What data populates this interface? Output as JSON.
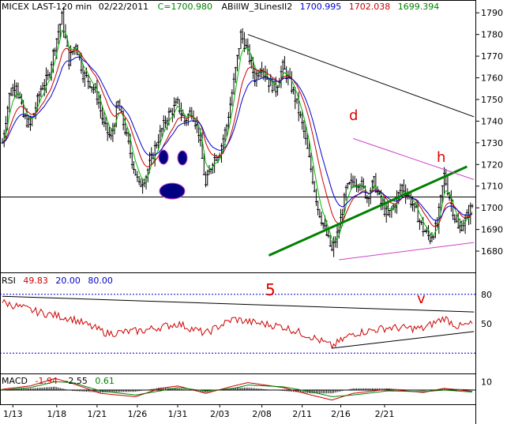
{
  "header": {
    "symbol": "MICEX LAST-120 min",
    "date": "02/22/2011",
    "close": "C=1700.980",
    "indicator": "ABillW_3LinesII2",
    "val_blue": "1700.995",
    "val_red": "1702.038",
    "val_green": "1699.394"
  },
  "colors": {
    "price": "#000000",
    "green_ma": "#00bb00",
    "red_ma": "#cc0000",
    "blue_ma": "#0000cc",
    "trend": "#008000",
    "channel": "#cc44cc",
    "rsi": "#cc0000",
    "macd_signal": "#008000",
    "annotation": "#dd0000",
    "face": "#000080"
  },
  "annotations": {
    "five": "5",
    "d": "d",
    "h": "h",
    "v": "v"
  },
  "rsi_panel": {
    "label": "RSI",
    "value": "49.83",
    "level_low": "20.00",
    "level_high": "80.00"
  },
  "macd_panel": {
    "label": "MACD",
    "v1": "-1.94",
    "v2": "-2.55",
    "v3": "0.61"
  },
  "chart_data": [
    {
      "type": "candlestick",
      "title": "MICEX LAST-120 min",
      "y_ticks": [
        1680,
        1690,
        1700,
        1710,
        1720,
        1730,
        1740,
        1750,
        1760,
        1770,
        1780,
        1790
      ],
      "x_ticks": [
        "1/13",
        "1/18",
        "1/21",
        "1/26",
        "1/31",
        "2/03",
        "2/08",
        "2/11",
        "2/16",
        "2/21"
      ],
      "ylim": [
        1672,
        1793
      ],
      "horizontal_level": 1705,
      "path_anchors": [
        [
          0,
          1730
        ],
        [
          4,
          1752
        ],
        [
          8,
          1758
        ],
        [
          12,
          1742
        ],
        [
          16,
          1738
        ],
        [
          22,
          1755
        ],
        [
          26,
          1760
        ],
        [
          30,
          1775
        ],
        [
          34,
          1788
        ],
        [
          38,
          1768
        ],
        [
          42,
          1776
        ],
        [
          46,
          1762
        ],
        [
          50,
          1758
        ],
        [
          54,
          1752
        ],
        [
          58,
          1738
        ],
        [
          62,
          1732
        ],
        [
          66,
          1748
        ],
        [
          70,
          1736
        ],
        [
          74,
          1722
        ],
        [
          78,
          1710
        ],
        [
          82,
          1715
        ],
        [
          88,
          1730
        ],
        [
          94,
          1742
        ],
        [
          100,
          1748
        ],
        [
          104,
          1740
        ],
        [
          108,
          1745
        ],
        [
          112,
          1735
        ],
        [
          116,
          1710
        ],
        [
          120,
          1722
        ],
        [
          124,
          1726
        ],
        [
          128,
          1738
        ],
        [
          132,
          1758
        ],
        [
          136,
          1780
        ],
        [
          140,
          1772
        ],
        [
          144,
          1760
        ],
        [
          148,
          1766
        ],
        [
          152,
          1758
        ],
        [
          156,
          1755
        ],
        [
          160,
          1765
        ],
        [
          164,
          1758
        ],
        [
          168,
          1748
        ],
        [
          172,
          1735
        ],
        [
          176,
          1718
        ],
        [
          180,
          1700
        ],
        [
          184,
          1690
        ],
        [
          188,
          1680
        ],
        [
          192,
          1690
        ],
        [
          196,
          1708
        ],
        [
          200,
          1712
        ],
        [
          204,
          1712
        ],
        [
          208,
          1705
        ],
        [
          212,
          1712
        ],
        [
          216,
          1702
        ],
        [
          220,
          1696
        ],
        [
          224,
          1702
        ],
        [
          228,
          1710
        ],
        [
          232,
          1705
        ],
        [
          236,
          1698
        ],
        [
          240,
          1690
        ],
        [
          244,
          1686
        ],
        [
          248,
          1692
        ],
        [
          252,
          1715
        ],
        [
          256,
          1702
        ],
        [
          260,
          1690
        ],
        [
          264,
          1694
        ],
        [
          268,
          1701
        ]
      ],
      "bar_count": 269,
      "moving_averages": [
        {
          "name": "green",
          "period": 5
        },
        {
          "name": "red",
          "period": 13
        },
        {
          "name": "blue",
          "period": 21
        }
      ],
      "trendlines": [
        {
          "name": "downtrend",
          "points": [
            [
              140,
              1780
            ],
            [
              269,
              1742
            ]
          ]
        },
        {
          "name": "uptrend-5",
          "points": [
            [
              152,
              1678
            ],
            [
              265,
              1719
            ]
          ]
        },
        {
          "name": "channel-top",
          "points": [
            [
              200,
              1732
            ],
            [
              269,
              1713
            ]
          ]
        },
        {
          "name": "channel-bottom",
          "points": [
            [
              192,
              1676
            ],
            [
              269,
              1684
            ]
          ]
        }
      ]
    },
    {
      "type": "line",
      "title": "RSI",
      "y_ticks": [
        50,
        80
      ],
      "ylim": [
        0,
        100
      ],
      "levels": [
        20,
        80
      ],
      "value": 49.83,
      "anchors": [
        [
          0,
          72
        ],
        [
          20,
          62
        ],
        [
          40,
          55
        ],
        [
          60,
          40
        ],
        [
          80,
          43
        ],
        [
          100,
          50
        ],
        [
          116,
          40
        ],
        [
          124,
          48
        ],
        [
          132,
          55
        ],
        [
          140,
          52
        ],
        [
          160,
          47
        ],
        [
          176,
          37
        ],
        [
          188,
          27
        ],
        [
          200,
          40
        ],
        [
          220,
          46
        ],
        [
          240,
          45
        ],
        [
          252,
          56
        ],
        [
          260,
          47
        ],
        [
          269,
          50
        ]
      ],
      "trendlines": [
        {
          "name": "rsi-down",
          "points": [
            [
              0,
              78
            ],
            [
              269,
              62
            ]
          ]
        },
        {
          "name": "rsi-up",
          "points": [
            [
              188,
              25
            ],
            [
              269,
              42
            ]
          ]
        }
      ]
    },
    {
      "type": "line",
      "title": "MACD",
      "y_ticks": [
        10
      ],
      "series": [
        {
          "name": "macd",
          "anchors": [
            [
              0,
              1
            ],
            [
              16,
              5
            ],
            [
              30,
              14
            ],
            [
              40,
              8
            ],
            [
              56,
              -4
            ],
            [
              76,
              -8
            ],
            [
              90,
              2
            ],
            [
              100,
              5
            ],
            [
              116,
              -4
            ],
            [
              132,
              5
            ],
            [
              140,
              9
            ],
            [
              160,
              3
            ],
            [
              176,
              -6
            ],
            [
              188,
              -12
            ],
            [
              200,
              -4
            ],
            [
              220,
              1
            ],
            [
              240,
              -3
            ],
            [
              252,
              2
            ],
            [
              269,
              -1.94
            ]
          ]
        },
        {
          "name": "signal",
          "anchors": [
            [
              0,
              0
            ],
            [
              16,
              3
            ],
            [
              30,
              10
            ],
            [
              40,
              9
            ],
            [
              56,
              -1
            ],
            [
              76,
              -6
            ],
            [
              90,
              -1
            ],
            [
              100,
              3
            ],
            [
              116,
              -1
            ],
            [
              132,
              2
            ],
            [
              140,
              6
            ],
            [
              160,
              4
            ],
            [
              176,
              -2
            ],
            [
              188,
              -8
            ],
            [
              200,
              -6
            ],
            [
              220,
              -1
            ],
            [
              240,
              -2
            ],
            [
              252,
              0
            ],
            [
              269,
              -2.55
            ]
          ]
        }
      ]
    }
  ]
}
